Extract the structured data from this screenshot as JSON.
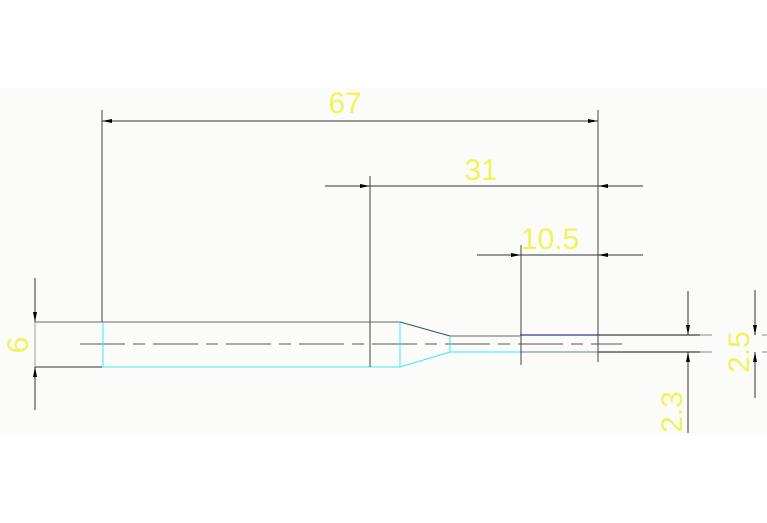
{
  "drawing": {
    "dimensions": {
      "overall_length": "67",
      "taper_to_end": "31",
      "tip_length": "10.5",
      "body_diameter": "6",
      "neck_diameter": "2.3",
      "tip_diameter": "2.5"
    },
    "colors": {
      "dimension_text": "#f2f25a",
      "outline": "#333333",
      "highlight": "#33eeee",
      "tip_edge": "#000080"
    }
  }
}
